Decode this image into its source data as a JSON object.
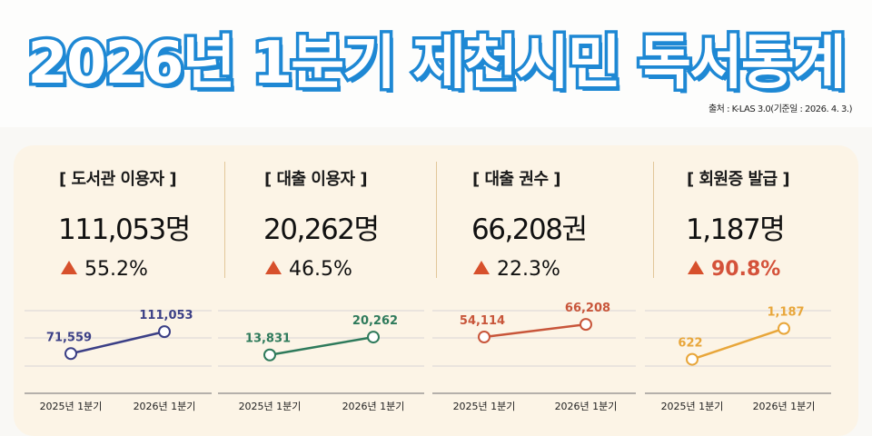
{
  "header": {
    "title": "2026년 1분기 제천시민 독서통계",
    "source": "출처 : K-LAS 3.0(기준일 : 2026. 4. 3.)"
  },
  "cards": [
    {
      "title": "[ 도서관 이용자 ]",
      "value": "111,053명",
      "change": "55.2%",
      "change_color": "#111111"
    },
    {
      "title": "[ 대출 이용자 ]",
      "value": "20,262명",
      "change": "46.5%",
      "change_color": "#111111"
    },
    {
      "title": "[ 대출 권수 ]",
      "value": "66,208권",
      "change": "22.3%",
      "change_color": "#111111"
    },
    {
      "title": "[ 회원증 발급 ]",
      "value": "1,187명",
      "change": "90.8%",
      "change_color": "#d4523a"
    }
  ],
  "chart_data": [
    {
      "type": "line",
      "categories": [
        "2025년 1분기",
        "2026년 1분기"
      ],
      "values": [
        71559,
        111053
      ],
      "labels": [
        "71,559",
        "111,053"
      ],
      "color": "#3b3f86",
      "ylim": [
        0,
        180000
      ],
      "grid": true
    },
    {
      "type": "line",
      "categories": [
        "2025년 1분기",
        "2026년 1분기"
      ],
      "values": [
        13831,
        20262
      ],
      "labels": [
        "13,831",
        "20,262"
      ],
      "color": "#2e7a5b",
      "ylim": [
        0,
        36000
      ],
      "grid": true
    },
    {
      "type": "line",
      "categories": [
        "2025년 1분기",
        "2026년 1분기"
      ],
      "values": [
        54114,
        66208
      ],
      "labels": [
        "54,114",
        "66,208"
      ],
      "color": "#c8553a",
      "ylim": [
        0,
        96000
      ],
      "grid": true
    },
    {
      "type": "line",
      "categories": [
        "2025년 1분기",
        "2026년 1분기"
      ],
      "values": [
        622,
        1187
      ],
      "labels": [
        "622",
        "1,187"
      ],
      "color": "#e8a63a",
      "ylim": [
        0,
        1830
      ],
      "grid": true
    }
  ]
}
